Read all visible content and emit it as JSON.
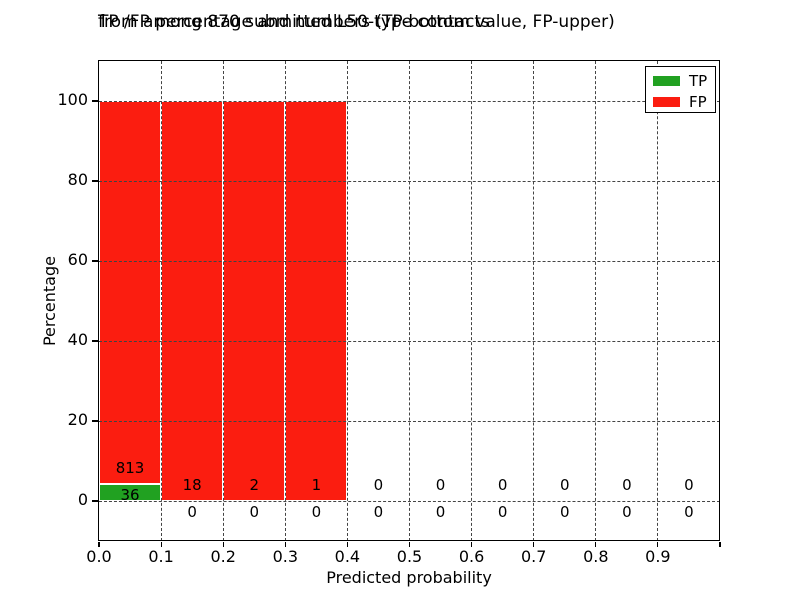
{
  "chart_data": {
    "type": "bar",
    "subtype": "stacked-percentage-histogram",
    "title_lines": [
      "TP /FP percentage and numbers (TP-bottom value, FP-upper)",
      "from among 870 submitted L50-type contacts"
    ],
    "total_contacts": 870,
    "xlabel": "Predicted probability",
    "ylabel": "Percentage",
    "xlim": [
      0.0,
      1.0
    ],
    "ylim": [
      -10,
      110
    ],
    "xticks": [
      0.0,
      0.1,
      0.2,
      0.3,
      0.4,
      0.5,
      0.6,
      0.7,
      0.8,
      0.9,
      1.0
    ],
    "xtick_labels": [
      "0.0",
      "0.1",
      "0.2",
      "0.3",
      "0.4",
      "0.5",
      "0.6",
      "0.7",
      "0.8",
      "0.9",
      ""
    ],
    "yticks": [
      0,
      20,
      40,
      60,
      80,
      100
    ],
    "grid": "dotted",
    "legend_position": "upper right",
    "bin_width": 0.1,
    "bin_starts": [
      0.0,
      0.1,
      0.2,
      0.3,
      0.4,
      0.5,
      0.6,
      0.7,
      0.8,
      0.9
    ],
    "series": [
      {
        "name": "TP",
        "color": "#21a121",
        "counts": [
          36,
          0,
          0,
          0,
          0,
          0,
          0,
          0,
          0,
          0
        ],
        "percent": [
          4.24,
          0,
          0,
          0,
          0,
          0,
          0,
          0,
          0,
          0
        ]
      },
      {
        "name": "FP",
        "color": "#fb1d10",
        "counts": [
          813,
          18,
          2,
          1,
          0,
          0,
          0,
          0,
          0,
          0
        ],
        "percent": [
          95.76,
          100,
          100,
          100,
          0,
          0,
          0,
          0,
          0,
          0
        ]
      }
    ],
    "bar_edge_color": "#ffffff",
    "grid_color": "#444444"
  }
}
